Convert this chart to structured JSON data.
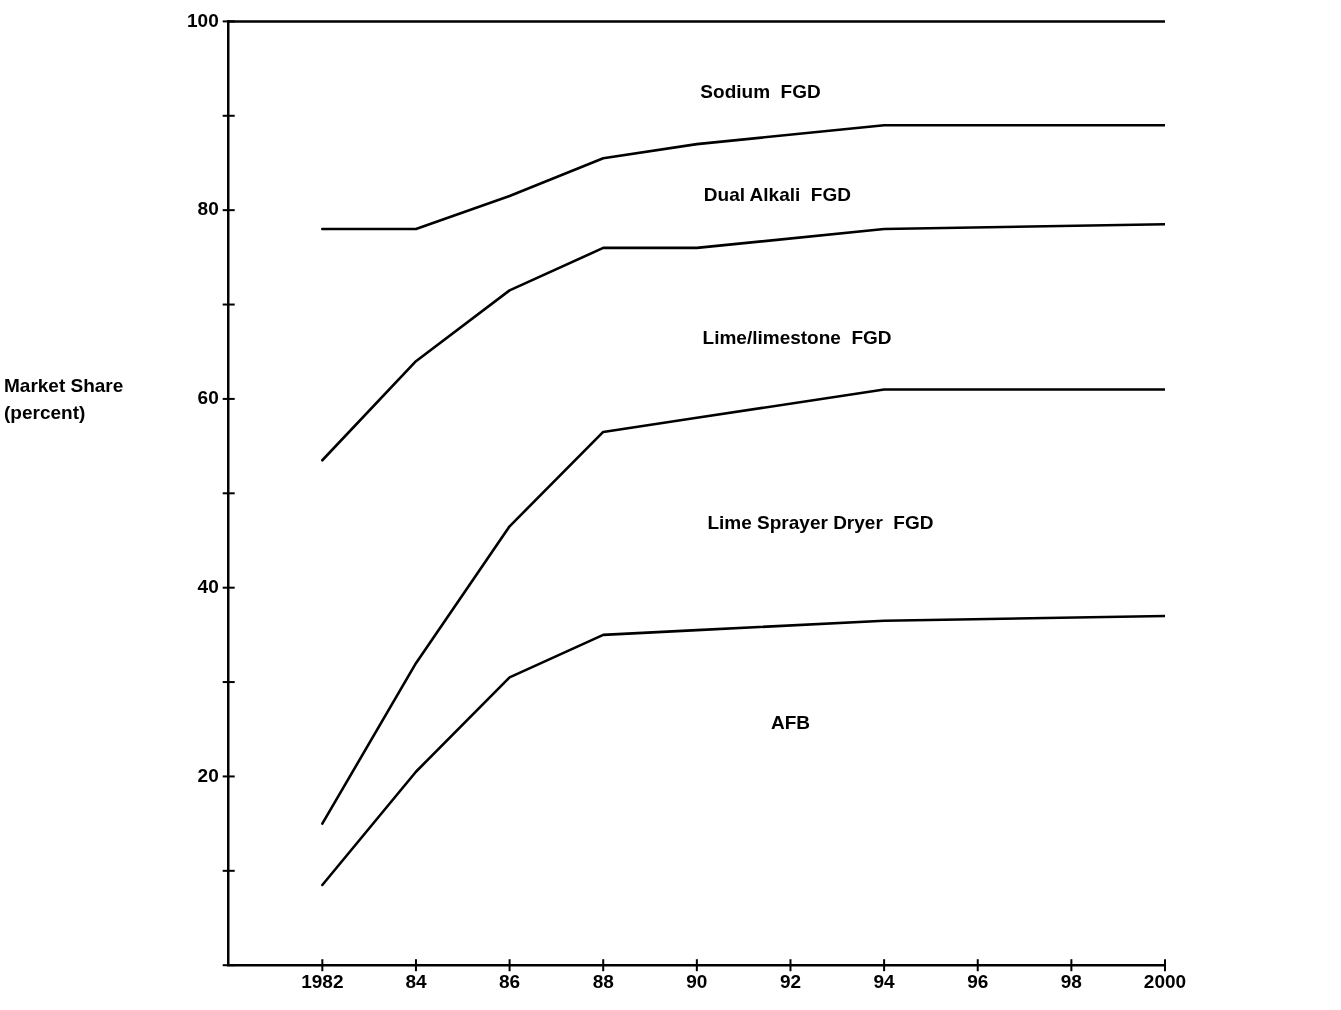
{
  "chart_data": {
    "type": "line",
    "ylabel": "Market Share (percent)",
    "x": [
      1982,
      1984,
      1986,
      1988,
      1990,
      1994,
      2000
    ],
    "series": [
      {
        "color": "#000000",
        "values": [
          78,
          78,
          81.5,
          85.5,
          87,
          89,
          89
        ]
      },
      {
        "color": "#000000",
        "values": [
          53.5,
          64,
          71.5,
          76,
          76,
          78,
          78.5
        ]
      },
      {
        "color": "#000000",
        "values": [
          15,
          32,
          46.5,
          56.5,
          58,
          61,
          61
        ]
      },
      {
        "color": "#000000",
        "values": [
          8.5,
          20.5,
          30.5,
          35,
          35.5,
          36.5,
          37
        ]
      }
    ],
    "xlim": [
      1980,
      2000
    ],
    "ylim": [
      0,
      100
    ],
    "xticks": [
      {
        "value": 1982,
        "label": "1982"
      },
      {
        "value": 1984,
        "label": "84"
      },
      {
        "value": 1986,
        "label": "86"
      },
      {
        "value": 1988,
        "label": "88"
      },
      {
        "value": 1990,
        "label": "90"
      },
      {
        "value": 1992,
        "label": "92"
      },
      {
        "value": 1994,
        "label": "94"
      },
      {
        "value": 1996,
        "label": "96"
      },
      {
        "value": 1998,
        "label": "98"
      },
      {
        "value": 2000,
        "label": "2000"
      }
    ],
    "yticks": [
      {
        "value": 0,
        "label": null
      },
      {
        "value": 10,
        "label": null
      },
      20,
      {
        "value": 30,
        "label": null
      },
      40,
      {
        "value": 50,
        "label": null
      },
      60,
      {
        "value": 70,
        "label": null
      },
      80,
      {
        "value": 90,
        "label": null
      },
      100
    ],
    "annotations": [
      "Sodium  FGD",
      "Dual Alkali  FGD",
      "Lime/limestone  FGD",
      "Lime Sprayer Dryer  FGD",
      "AFB"
    ],
    "grid": false,
    "legend": false,
    "marker": "none",
    "line_style": "solid"
  }
}
